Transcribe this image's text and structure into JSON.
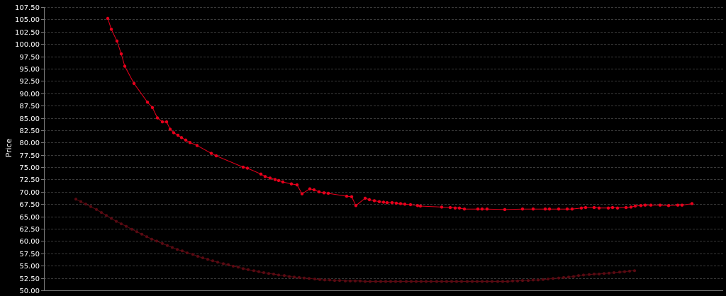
{
  "chart_data": {
    "type": "line",
    "title": "",
    "xlabel": "",
    "ylabel": "Price",
    "ylim": [
      50.0,
      107.5
    ],
    "y_ticks": [
      "50.00",
      "52.50",
      "55.00",
      "57.50",
      "60.00",
      "62.50",
      "65.00",
      "67.50",
      "70.00",
      "72.50",
      "75.00",
      "77.50",
      "80.00",
      "82.50",
      "85.00",
      "87.50",
      "90.00",
      "92.50",
      "95.00",
      "97.50",
      "100.00",
      "102.50",
      "105.00",
      "107.50"
    ],
    "x_ticks": [],
    "grid": true,
    "series": [
      {
        "color": "#e8001c",
        "marker": "circle",
        "points": [
          [
            152,
            105.2
          ],
          [
            157,
            103.0
          ],
          [
            165,
            100.6
          ],
          [
            171,
            98.0
          ],
          [
            176,
            95.5
          ],
          [
            189,
            92.0
          ],
          [
            208,
            88.2
          ],
          [
            215,
            87.1
          ],
          [
            222,
            85.0
          ],
          [
            229,
            84.2
          ],
          [
            235,
            84.2
          ],
          [
            240,
            82.7
          ],
          [
            245,
            82.0
          ],
          [
            251,
            81.5
          ],
          [
            256,
            81.0
          ],
          [
            262,
            80.5
          ],
          [
            268,
            80.0
          ],
          [
            278,
            79.4
          ],
          [
            298,
            77.8
          ],
          [
            305,
            77.3
          ],
          [
            343,
            75.0
          ],
          [
            349,
            74.8
          ],
          [
            368,
            73.6
          ],
          [
            374,
            73.1
          ],
          [
            381,
            72.8
          ],
          [
            388,
            72.5
          ],
          [
            393,
            72.3
          ],
          [
            399,
            72.0
          ],
          [
            411,
            71.6
          ],
          [
            419,
            71.4
          ],
          [
            426,
            69.6
          ],
          [
            437,
            70.6
          ],
          [
            443,
            70.4
          ],
          [
            450,
            70.0
          ],
          [
            457,
            69.8
          ],
          [
            463,
            69.7
          ],
          [
            489,
            69.1
          ],
          [
            496,
            69.0
          ],
          [
            502,
            67.2
          ],
          [
            515,
            68.7
          ],
          [
            521,
            68.4
          ],
          [
            528,
            68.2
          ],
          [
            535,
            68.0
          ],
          [
            541,
            67.9
          ],
          [
            546,
            67.8
          ],
          [
            553,
            67.8
          ],
          [
            559,
            67.7
          ],
          [
            565,
            67.6
          ],
          [
            571,
            67.5
          ],
          [
            579,
            67.4
          ],
          [
            589,
            67.2
          ],
          [
            593,
            67.1
          ],
          [
            623,
            66.9
          ],
          [
            635,
            66.8
          ],
          [
            642,
            66.7
          ],
          [
            648,
            66.7
          ],
          [
            655,
            66.5
          ],
          [
            674,
            66.5
          ],
          [
            680,
            66.5
          ],
          [
            687,
            66.5
          ],
          [
            712,
            66.4
          ],
          [
            737,
            66.5
          ],
          [
            752,
            66.5
          ],
          [
            769,
            66.5
          ],
          [
            775,
            66.5
          ],
          [
            788,
            66.5
          ],
          [
            800,
            66.5
          ],
          [
            807,
            66.5
          ],
          [
            820,
            66.7
          ],
          [
            826,
            66.8
          ],
          [
            838,
            66.8
          ],
          [
            845,
            66.7
          ],
          [
            858,
            66.7
          ],
          [
            864,
            66.8
          ],
          [
            871,
            66.7
          ],
          [
            883,
            66.8
          ],
          [
            890,
            66.9
          ],
          [
            896,
            67.1
          ],
          [
            904,
            67.2
          ],
          [
            910,
            67.3
          ],
          [
            918,
            67.3
          ],
          [
            931,
            67.3
          ],
          [
            943,
            67.2
          ],
          [
            956,
            67.3
          ],
          [
            962,
            67.3
          ],
          [
            976,
            67.6
          ]
        ]
      },
      {
        "color": "#5a0a12",
        "marker": "circle",
        "points": [
          [
            107,
            68.5
          ],
          [
            114,
            68.0
          ],
          [
            121,
            67.5
          ],
          [
            128,
            67.0
          ],
          [
            136,
            66.4
          ],
          [
            143,
            65.8
          ],
          [
            150,
            65.2
          ],
          [
            157,
            64.6
          ],
          [
            164,
            64.0
          ],
          [
            171,
            63.5
          ],
          [
            178,
            63.0
          ],
          [
            186,
            62.4
          ],
          [
            193,
            61.9
          ],
          [
            200,
            61.4
          ],
          [
            207,
            60.9
          ],
          [
            214,
            60.4
          ],
          [
            221,
            60.0
          ],
          [
            229,
            59.5
          ],
          [
            236,
            59.1
          ],
          [
            243,
            58.7
          ],
          [
            250,
            58.3
          ],
          [
            257,
            58.0
          ],
          [
            264,
            57.6
          ],
          [
            272,
            57.3
          ],
          [
            279,
            56.9
          ],
          [
            286,
            56.6
          ],
          [
            293,
            56.3
          ],
          [
            300,
            56.0
          ],
          [
            307,
            55.7
          ],
          [
            315,
            55.4
          ],
          [
            322,
            55.2
          ],
          [
            329,
            54.9
          ],
          [
            336,
            54.7
          ],
          [
            343,
            54.4
          ],
          [
            350,
            54.2
          ],
          [
            358,
            54.0
          ],
          [
            365,
            53.8
          ],
          [
            372,
            53.6
          ],
          [
            379,
            53.4
          ],
          [
            386,
            53.3
          ],
          [
            393,
            53.1
          ],
          [
            401,
            53.0
          ],
          [
            408,
            52.8
          ],
          [
            415,
            52.7
          ],
          [
            422,
            52.6
          ],
          [
            429,
            52.5
          ],
          [
            436,
            52.4
          ],
          [
            444,
            52.3
          ],
          [
            451,
            52.2
          ],
          [
            458,
            52.1
          ],
          [
            465,
            52.1
          ],
          [
            472,
            52.0
          ],
          [
            479,
            52.0
          ],
          [
            487,
            51.9
          ],
          [
            494,
            51.9
          ],
          [
            501,
            51.9
          ],
          [
            508,
            51.9
          ],
          [
            515,
            51.8
          ],
          [
            522,
            51.8
          ],
          [
            530,
            51.8
          ],
          [
            537,
            51.8
          ],
          [
            544,
            51.8
          ],
          [
            551,
            51.8
          ],
          [
            558,
            51.8
          ],
          [
            565,
            51.8
          ],
          [
            573,
            51.8
          ],
          [
            580,
            51.8
          ],
          [
            587,
            51.8
          ],
          [
            594,
            51.8
          ],
          [
            601,
            51.8
          ],
          [
            608,
            51.8
          ],
          [
            616,
            51.8
          ],
          [
            623,
            51.8
          ],
          [
            630,
            51.8
          ],
          [
            637,
            51.8
          ],
          [
            644,
            51.8
          ],
          [
            651,
            51.8
          ],
          [
            659,
            51.8
          ],
          [
            666,
            51.8
          ],
          [
            673,
            51.8
          ],
          [
            680,
            51.8
          ],
          [
            687,
            51.8
          ],
          [
            694,
            51.8
          ],
          [
            702,
            51.8
          ],
          [
            709,
            51.8
          ],
          [
            716,
            51.8
          ],
          [
            723,
            51.9
          ],
          [
            730,
            51.9
          ],
          [
            737,
            52.0
          ],
          [
            745,
            52.0
          ],
          [
            752,
            52.1
          ],
          [
            759,
            52.1
          ],
          [
            766,
            52.2
          ],
          [
            773,
            52.3
          ],
          [
            780,
            52.4
          ],
          [
            788,
            52.5
          ],
          [
            795,
            52.6
          ],
          [
            802,
            52.7
          ],
          [
            809,
            52.8
          ],
          [
            816,
            53.0
          ],
          [
            823,
            53.1
          ],
          [
            831,
            53.2
          ],
          [
            838,
            53.3
          ],
          [
            845,
            53.3
          ],
          [
            852,
            53.4
          ],
          [
            859,
            53.5
          ],
          [
            866,
            53.6
          ],
          [
            874,
            53.7
          ],
          [
            881,
            53.8
          ],
          [
            888,
            53.9
          ],
          [
            895,
            54.0
          ]
        ]
      }
    ]
  }
}
